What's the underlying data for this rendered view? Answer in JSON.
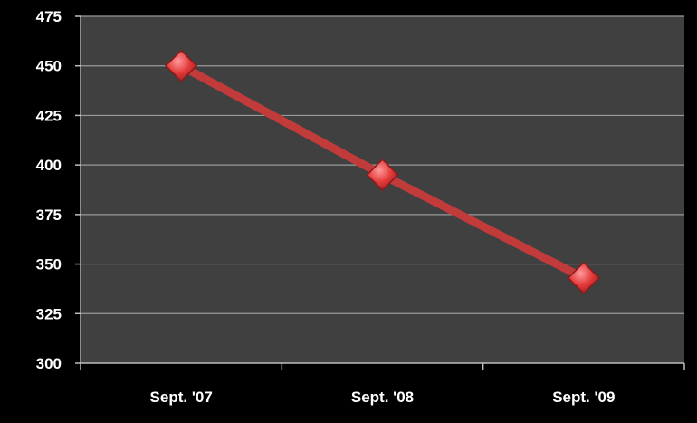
{
  "chart_data": {
    "type": "line",
    "categories": [
      "Sept. '07",
      "Sept. '08",
      "Sept. '09"
    ],
    "series": [
      {
        "values": [
          450,
          395,
          343
        ]
      }
    ],
    "ylim": [
      300,
      475
    ],
    "yticks": [
      300,
      325,
      350,
      375,
      400,
      425,
      450,
      475
    ],
    "grid": true,
    "marker": "diamond",
    "colors": {
      "background": "#000000",
      "plot_area": "#404040",
      "gridline": "#9a9a9a",
      "axis": "#bdbdbd",
      "line": "#c23b3b",
      "marker": "#e33a3a",
      "marker_highlight": "#ff8a8a",
      "text": "#ffffff"
    }
  }
}
